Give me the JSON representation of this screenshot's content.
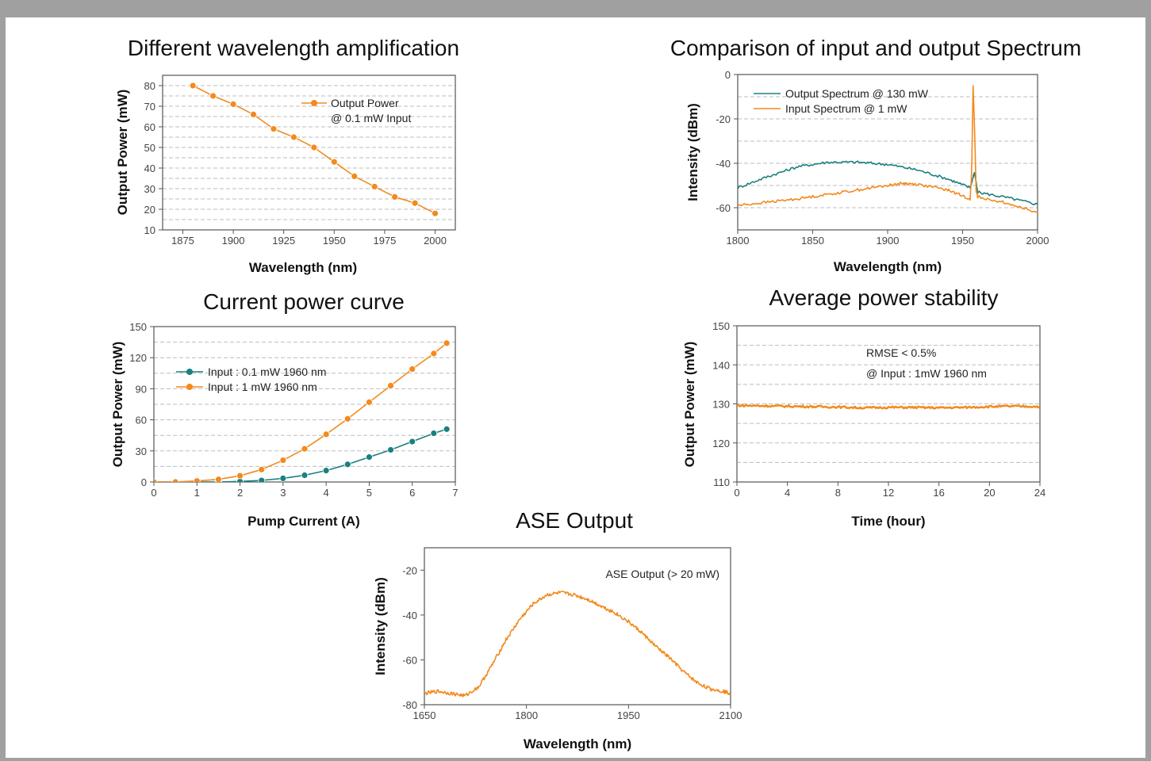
{
  "chart_data": [
    {
      "type": "line",
      "title": "Different wavelength amplification",
      "xlabel": "Wavelength (nm)",
      "ylabel": "Output Power (mW)",
      "xlim": [
        1865,
        2010
      ],
      "ylim": [
        10,
        85
      ],
      "xticks": [
        1875,
        1900,
        1925,
        1950,
        1975,
        2000
      ],
      "yticks": [
        10,
        20,
        30,
        40,
        50,
        60,
        70,
        80
      ],
      "grid": "dashed horizontal",
      "legend": "top-right",
      "legend_lines": [
        "Output Power",
        "@ 0.1 mW Input"
      ],
      "series": [
        {
          "name": "Output Power @ 0.1 mW Input",
          "color": "#f28a1e",
          "marker": "circle",
          "x": [
            1880,
            1890,
            1900,
            1910,
            1920,
            1930,
            1940,
            1950,
            1960,
            1970,
            1980,
            1990,
            2000
          ],
          "y": [
            80,
            75,
            71,
            66,
            59,
            55,
            50,
            43,
            36,
            31,
            26,
            23,
            18
          ]
        }
      ]
    },
    {
      "type": "line",
      "title": "Comparison of input and output Spectrum",
      "xlabel": "Wavelength (nm)",
      "ylabel": "Intensity (dBm)",
      "xlim": [
        1800,
        2000
      ],
      "ylim": [
        -70,
        0
      ],
      "xticks": [
        1800,
        1850,
        1900,
        1950,
        2000
      ],
      "yticks": [
        0,
        -20,
        -40,
        -60
      ],
      "grid": "dashed horizontal",
      "legend": "top-left",
      "series": [
        {
          "name": "Output Spectrum @ 130 mW",
          "color": "#1a8080",
          "x": [
            1800,
            1820,
            1840,
            1860,
            1880,
            1900,
            1920,
            1940,
            1955,
            1958,
            1960,
            1980,
            2000
          ],
          "y": [
            -51,
            -46,
            -41.5,
            -39.5,
            -39.5,
            -40.5,
            -43,
            -47,
            -51,
            -44,
            -53,
            -55.5,
            -58.5
          ]
        },
        {
          "name": "Input Spectrum @ 1 mW",
          "color": "#f28a1e",
          "x": [
            1800,
            1820,
            1840,
            1860,
            1880,
            1900,
            1910,
            1920,
            1940,
            1955,
            1956,
            1957,
            1958,
            1959,
            1960,
            1980,
            2000
          ],
          "y": [
            -59,
            -57.5,
            -56,
            -54,
            -52,
            -50,
            -49,
            -49.5,
            -52,
            -56,
            -45,
            -5,
            -25,
            -52,
            -55,
            -58,
            -62
          ]
        }
      ]
    },
    {
      "type": "line",
      "title": "Current power curve",
      "xlabel": "Pump Current (A)",
      "ylabel": "Output Power (mW)",
      "xlim": [
        0,
        7
      ],
      "ylim": [
        0,
        150
      ],
      "xticks": [
        0,
        1,
        2,
        3,
        4,
        5,
        6,
        7
      ],
      "yticks": [
        0,
        30,
        60,
        90,
        120,
        150
      ],
      "grid": "dashed horizontal",
      "legend": "top-left",
      "series": [
        {
          "name": "Input : 0.1 mW 1960 nm",
          "color": "#1a8080",
          "marker": "circle",
          "x": [
            0,
            0.5,
            1,
            1.5,
            2,
            2.5,
            3,
            3.5,
            4,
            4.5,
            5,
            5.5,
            6,
            6.5,
            6.8
          ],
          "y": [
            0,
            0,
            0,
            0,
            0.5,
            1.5,
            3.5,
            6.5,
            11,
            17,
            24,
            31,
            39,
            47,
            51
          ]
        },
        {
          "name": "Input : 1 mW 1960 nm",
          "color": "#f28a1e",
          "marker": "circle",
          "x": [
            0,
            0.5,
            1,
            1.5,
            2,
            2.5,
            3,
            3.5,
            4,
            4.5,
            5,
            5.5,
            6,
            6.5,
            6.8
          ],
          "y": [
            0,
            0,
            1,
            2.5,
            6,
            12,
            21,
            32,
            46,
            61,
            77,
            93,
            109,
            124,
            134
          ]
        }
      ]
    },
    {
      "type": "line",
      "title": "Average power stability",
      "xlabel": "Time (hour)",
      "ylabel": "Output Power (mW)",
      "xlim": [
        0,
        24
      ],
      "ylim": [
        110,
        150
      ],
      "xticks": [
        0,
        4,
        8,
        12,
        16,
        20,
        24
      ],
      "yticks": [
        110,
        120,
        130,
        140,
        150
      ],
      "grid": "dashed horizontal",
      "annotations": [
        "RMSE < 0.5%",
        "@ Input : 1mW 1960 nm"
      ],
      "series": [
        {
          "color": "#f28a1e",
          "x": [
            0,
            2,
            4,
            6,
            8,
            10,
            12,
            14,
            16,
            18,
            20,
            22,
            24
          ],
          "y": [
            129.6,
            129.5,
            129.4,
            129.3,
            129.2,
            129.0,
            129.1,
            129.1,
            129.0,
            129.1,
            129.3,
            129.4,
            129.3
          ]
        }
      ]
    },
    {
      "type": "line",
      "title": "ASE Output",
      "xlabel": "Wavelength (nm)",
      "ylabel": "Intensity (dBm)",
      "xlim": [
        1650,
        2100
      ],
      "ylim": [
        -80,
        -10
      ],
      "xticks": [
        1650,
        1800,
        1950,
        2100
      ],
      "yticks": [
        -20,
        -40,
        -60,
        -80
      ],
      "grid": "none",
      "legend": "top-right",
      "legend_lines": [
        "ASE Output (> 20 mW)"
      ],
      "series": [
        {
          "name": "ASE Output (> 20 mW)",
          "color": "#f28a1e",
          "x": [
            1650,
            1670,
            1690,
            1710,
            1730,
            1750,
            1770,
            1790,
            1810,
            1830,
            1850,
            1870,
            1890,
            1910,
            1930,
            1950,
            1970,
            1990,
            2010,
            2030,
            2050,
            2070,
            2090,
            2100
          ],
          "y": [
            -75,
            -74,
            -75,
            -76,
            -72,
            -62,
            -51,
            -42,
            -35,
            -31,
            -30,
            -31,
            -33,
            -36,
            -39,
            -43,
            -48,
            -54,
            -59,
            -65,
            -70,
            -73,
            -74,
            -75
          ]
        }
      ]
    }
  ]
}
